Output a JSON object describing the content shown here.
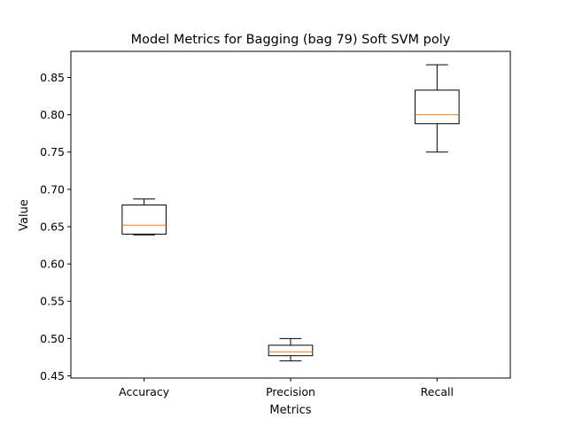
{
  "chart_data": {
    "type": "box",
    "title": "Model Metrics for Bagging (bag 79) Soft SVM poly",
    "xlabel": "Metrics",
    "ylabel": "Value",
    "ylim": [
      0.447,
      0.885
    ],
    "yticks": [
      0.45,
      0.5,
      0.55,
      0.6,
      0.65,
      0.7,
      0.75,
      0.8,
      0.85
    ],
    "ytick_labels": [
      "0.45",
      "0.50",
      "0.55",
      "0.60",
      "0.65",
      "0.70",
      "0.75",
      "0.80",
      "0.85"
    ],
    "categories": [
      "Accuracy",
      "Precision",
      "Recall"
    ],
    "boxes": [
      {
        "whislo": 0.639,
        "q1": 0.64,
        "med": 0.652,
        "q3": 0.679,
        "whishi": 0.687
      },
      {
        "whislo": 0.47,
        "q1": 0.477,
        "med": 0.482,
        "q3": 0.491,
        "whishi": 0.5
      },
      {
        "whislo": 0.75,
        "q1": 0.788,
        "med": 0.8,
        "q3": 0.833,
        "whishi": 0.867
      }
    ],
    "colors": {
      "box": "#000000",
      "median": "#ff7f0e"
    },
    "grid": false,
    "legend": "none"
  }
}
